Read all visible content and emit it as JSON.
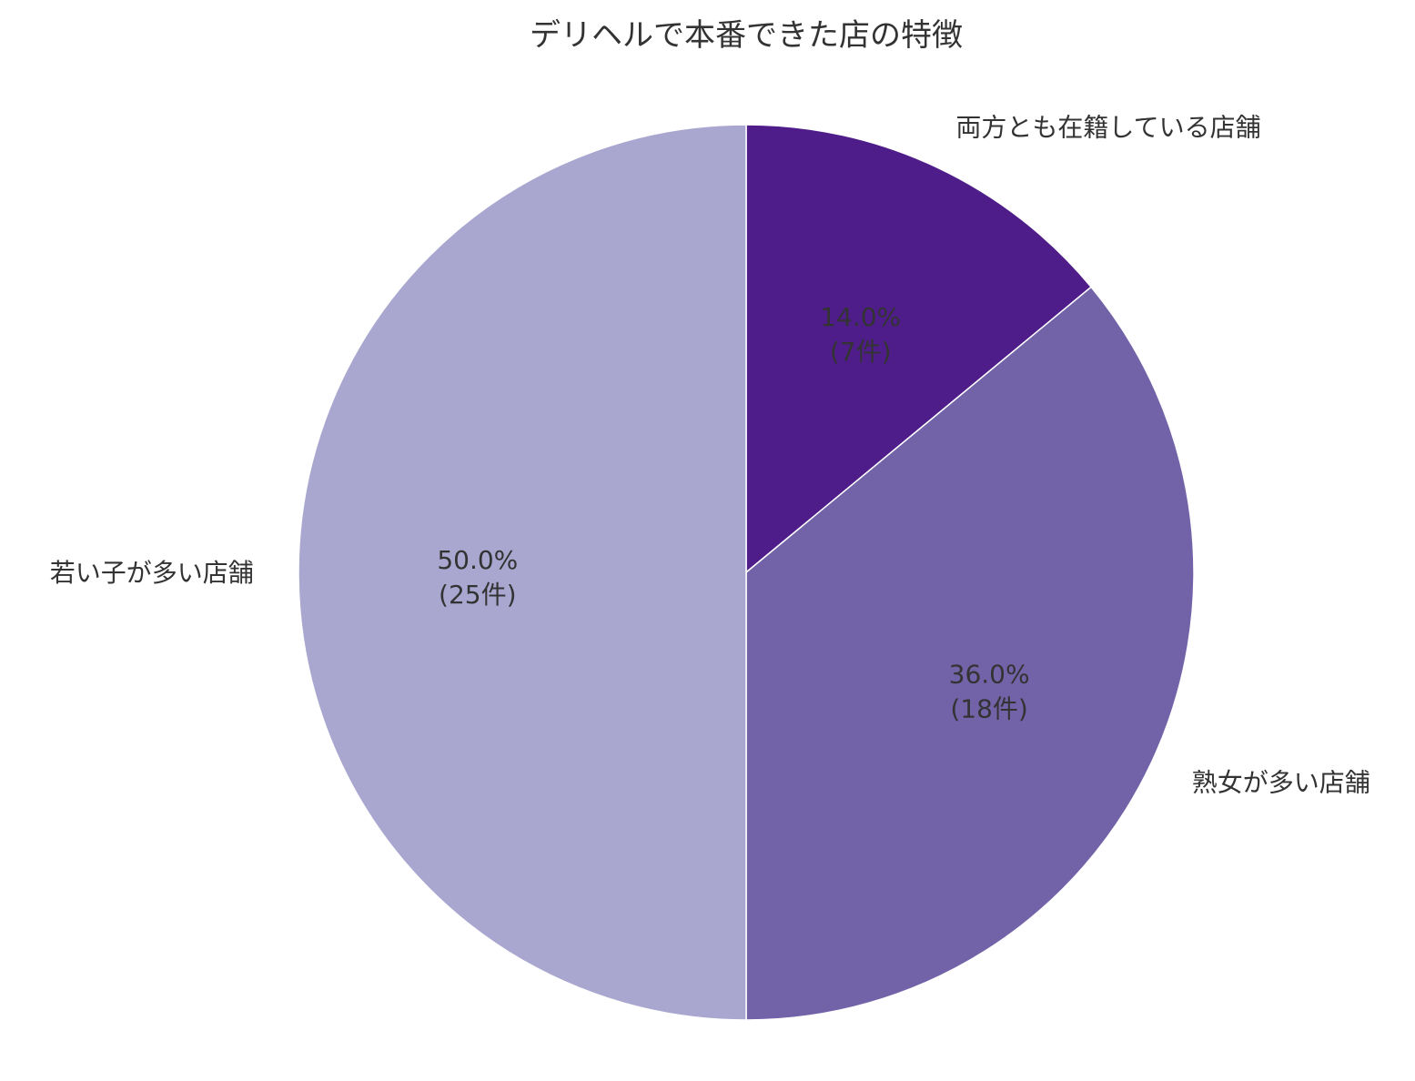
{
  "chart_data": {
    "type": "pie",
    "title": "デリヘルで本番できた店の特徴",
    "start_angle_deg": 90,
    "direction": "clockwise",
    "categories": [
      "両方とも在籍している店舗",
      "熟女が多い店舗",
      "若い子が多い店舗"
    ],
    "values": [
      7,
      18,
      25
    ],
    "percentages": [
      14.0,
      36.0,
      50.0
    ],
    "percent_labels": [
      "14.0%",
      "36.0%",
      "50.0%"
    ],
    "count_labels": [
      "(7件)",
      "(18件)",
      "(25件)"
    ],
    "colors": [
      "#4f1d89",
      "#7263a9",
      "#a9a7cf"
    ],
    "legend": "none",
    "grid": false
  }
}
